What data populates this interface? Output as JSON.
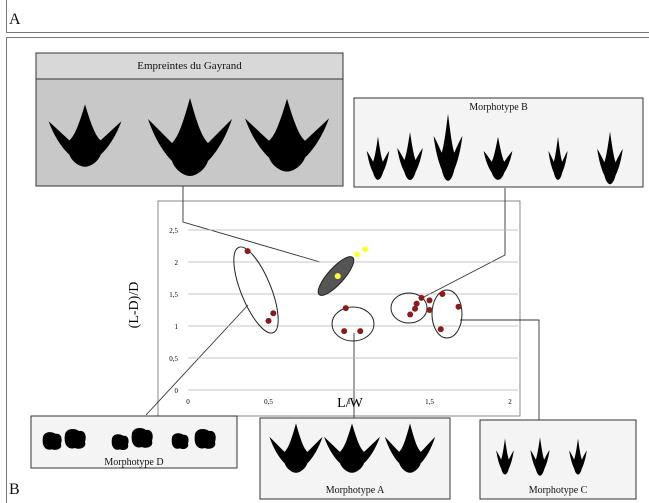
{
  "panel_labels": {
    "a": "A",
    "b": "B"
  },
  "morphotype_boxes": {
    "gayrand": "Empreintes du Gayrand",
    "b": "Morphotype B",
    "d": "Morphotype D",
    "a": "Morphotype A",
    "c": "Morphotype C"
  },
  "chart_data": {
    "type": "scatter",
    "xlabel": "L/W",
    "ylabel": "(L-D)/D",
    "xlim": [
      0,
      2
    ],
    "ylim": [
      0,
      2.5
    ],
    "x_ticks": [
      "0",
      "0,5",
      "1",
      "1,5",
      "2"
    ],
    "y_ticks": [
      "0",
      "0,5",
      "1",
      "1,5",
      "2",
      "2,5"
    ],
    "grid": "horizontal",
    "series": [
      {
        "group": "gayrand",
        "color": "#ffff33",
        "points": [
          [
            0.93,
            1.78
          ],
          [
            1.05,
            2.12
          ],
          [
            1.1,
            2.2
          ]
        ]
      },
      {
        "group": "D",
        "color": "#8b1a1a",
        "points": [
          [
            0.37,
            2.17
          ],
          [
            0.5,
            1.08
          ],
          [
            0.53,
            1.2
          ]
        ]
      },
      {
        "group": "A",
        "color": "#8b1a1a",
        "points": [
          [
            0.98,
            1.28
          ],
          [
            0.97,
            0.92
          ],
          [
            1.07,
            0.92
          ]
        ]
      },
      {
        "group": "B",
        "color": "#8b1a1a",
        "points": [
          [
            1.38,
            1.18
          ],
          [
            1.41,
            1.27
          ],
          [
            1.45,
            1.44
          ],
          [
            1.5,
            1.4
          ],
          [
            1.5,
            1.25
          ],
          [
            1.42,
            1.35
          ]
        ]
      },
      {
        "group": "C",
        "color": "#8b1a1a",
        "points": [
          [
            1.58,
            1.5
          ],
          [
            1.57,
            0.95
          ],
          [
            1.68,
            1.3
          ]
        ]
      }
    ]
  }
}
